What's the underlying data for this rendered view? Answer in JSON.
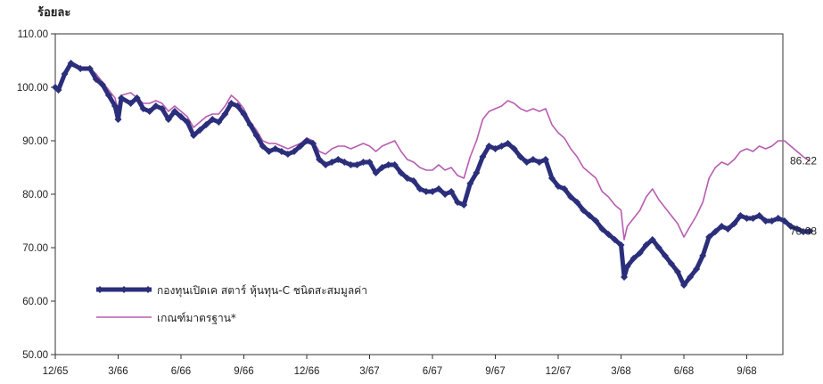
{
  "chart_data": {
    "type": "line",
    "title": "",
    "ylabel": "ร้อยละ",
    "xlabel": "",
    "ylim": [
      50,
      110
    ],
    "yticks": [
      "50.00",
      "60.00",
      "70.00",
      "80.00",
      "90.00",
      "100.00",
      "110.00"
    ],
    "categories": [
      "12/65",
      "3/66",
      "6/66",
      "9/66",
      "12/66",
      "3/67",
      "6/67",
      "9/67",
      "12/67",
      "3/68",
      "6/68",
      "9/68"
    ],
    "grid": false,
    "legend_position": "bottom-left",
    "series": [
      {
        "name": "กองทุนเปิดเค สตาร์ หุ้นทุน-C ชนิดสะสมมูลค่า",
        "color": "#2b2e7a",
        "style": "thick-with-diamond-markers",
        "end_label": "73.08",
        "points": [
          [
            0.0,
            100.0
          ],
          [
            0.05,
            99.5
          ],
          [
            0.15,
            102.5
          ],
          [
            0.25,
            104.5
          ],
          [
            0.4,
            103.5
          ],
          [
            0.55,
            103.5
          ],
          [
            0.65,
            101.5
          ],
          [
            0.75,
            100.5
          ],
          [
            0.85,
            98.5
          ],
          [
            0.95,
            96.5
          ],
          [
            1.0,
            94.0
          ],
          [
            1.05,
            98.0
          ],
          [
            1.2,
            97.0
          ],
          [
            1.3,
            98.0
          ],
          [
            1.4,
            96.0
          ],
          [
            1.5,
            95.5
          ],
          [
            1.6,
            96.5
          ],
          [
            1.7,
            96.0
          ],
          [
            1.8,
            94.0
          ],
          [
            1.9,
            95.5
          ],
          [
            2.0,
            94.5
          ],
          [
            2.1,
            93.5
          ],
          [
            2.2,
            91.0
          ],
          [
            2.3,
            92.0
          ],
          [
            2.4,
            93.0
          ],
          [
            2.5,
            94.0
          ],
          [
            2.6,
            93.5
          ],
          [
            2.7,
            95.0
          ],
          [
            2.8,
            97.0
          ],
          [
            2.9,
            96.5
          ],
          [
            3.0,
            95.0
          ],
          [
            3.1,
            93.0
          ],
          [
            3.2,
            91.0
          ],
          [
            3.3,
            89.0
          ],
          [
            3.4,
            88.0
          ],
          [
            3.5,
            88.5
          ],
          [
            3.6,
            88.0
          ],
          [
            3.7,
            87.5
          ],
          [
            3.8,
            88.0
          ],
          [
            3.9,
            89.0
          ],
          [
            4.0,
            90.0
          ],
          [
            4.1,
            89.5
          ],
          [
            4.2,
            86.5
          ],
          [
            4.3,
            85.5
          ],
          [
            4.4,
            86.0
          ],
          [
            4.5,
            86.5
          ],
          [
            4.6,
            86.0
          ],
          [
            4.7,
            85.5
          ],
          [
            4.8,
            85.5
          ],
          [
            4.9,
            86.0
          ],
          [
            5.0,
            86.0
          ],
          [
            5.1,
            84.0
          ],
          [
            5.2,
            85.0
          ],
          [
            5.3,
            85.5
          ],
          [
            5.4,
            85.5
          ],
          [
            5.5,
            84.0
          ],
          [
            5.6,
            83.0
          ],
          [
            5.7,
            82.5
          ],
          [
            5.8,
            81.0
          ],
          [
            5.9,
            80.5
          ],
          [
            6.0,
            80.5
          ],
          [
            6.1,
            81.0
          ],
          [
            6.2,
            80.0
          ],
          [
            6.3,
            80.5
          ],
          [
            6.4,
            78.5
          ],
          [
            6.5,
            78.0
          ],
          [
            6.6,
            82.0
          ],
          [
            6.7,
            84.0
          ],
          [
            6.8,
            87.0
          ],
          [
            6.9,
            89.0
          ],
          [
            7.0,
            88.5
          ],
          [
            7.1,
            89.0
          ],
          [
            7.2,
            89.5
          ],
          [
            7.3,
            88.5
          ],
          [
            7.4,
            87.0
          ],
          [
            7.5,
            86.0
          ],
          [
            7.6,
            86.5
          ],
          [
            7.7,
            86.0
          ],
          [
            7.8,
            86.5
          ],
          [
            7.9,
            83.0
          ],
          [
            8.0,
            81.5
          ],
          [
            8.1,
            81.0
          ],
          [
            8.2,
            79.5
          ],
          [
            8.3,
            78.5
          ],
          [
            8.4,
            77.0
          ],
          [
            8.5,
            76.0
          ],
          [
            8.6,
            75.0
          ],
          [
            8.7,
            73.5
          ],
          [
            8.8,
            72.5
          ],
          [
            8.9,
            71.5
          ],
          [
            9.0,
            70.5
          ],
          [
            9.05,
            64.5
          ],
          [
            9.1,
            66.5
          ],
          [
            9.2,
            68.0
          ],
          [
            9.3,
            69.0
          ],
          [
            9.4,
            70.5
          ],
          [
            9.5,
            71.5
          ],
          [
            9.6,
            70.0
          ],
          [
            9.7,
            68.5
          ],
          [
            9.8,
            67.0
          ],
          [
            9.9,
            65.5
          ],
          [
            10.0,
            63.0
          ],
          [
            10.1,
            64.5
          ],
          [
            10.2,
            66.0
          ],
          [
            10.3,
            68.5
          ],
          [
            10.4,
            72.0
          ],
          [
            10.5,
            73.0
          ],
          [
            10.6,
            74.0
          ],
          [
            10.7,
            73.5
          ],
          [
            10.8,
            74.5
          ],
          [
            10.9,
            76.0
          ],
          [
            11.0,
            75.5
          ],
          [
            11.1,
            75.5
          ],
          [
            11.2,
            76.0
          ],
          [
            11.3,
            75.0
          ],
          [
            11.4,
            75.0
          ],
          [
            11.5,
            75.5
          ],
          [
            11.6,
            75.0
          ],
          [
            11.7,
            74.0
          ],
          [
            11.8,
            73.5
          ],
          [
            11.9,
            73.0
          ],
          [
            12.0,
            73.08
          ]
        ]
      },
      {
        "name": "เกณฑ์มาตรฐาน*",
        "color": "#b85db0",
        "style": "thin-line",
        "end_label": "86.22",
        "points": [
          [
            0.0,
            100.0
          ],
          [
            0.05,
            99.5
          ],
          [
            0.15,
            102.5
          ],
          [
            0.25,
            104.0
          ],
          [
            0.4,
            103.5
          ],
          [
            0.55,
            103.5
          ],
          [
            0.65,
            102.5
          ],
          [
            0.75,
            101.0
          ],
          [
            0.85,
            99.5
          ],
          [
            0.95,
            98.0
          ],
          [
            1.0,
            95.5
          ],
          [
            1.05,
            98.5
          ],
          [
            1.2,
            99.0
          ],
          [
            1.3,
            98.0
          ],
          [
            1.4,
            97.0
          ],
          [
            1.5,
            97.0
          ],
          [
            1.6,
            97.5
          ],
          [
            1.7,
            97.0
          ],
          [
            1.8,
            95.5
          ],
          [
            1.9,
            96.5
          ],
          [
            2.0,
            95.5
          ],
          [
            2.1,
            94.5
          ],
          [
            2.2,
            92.5
          ],
          [
            2.3,
            93.5
          ],
          [
            2.4,
            94.5
          ],
          [
            2.5,
            95.0
          ],
          [
            2.6,
            95.0
          ],
          [
            2.7,
            96.5
          ],
          [
            2.8,
            98.5
          ],
          [
            2.9,
            97.5
          ],
          [
            3.0,
            96.0
          ],
          [
            3.1,
            93.5
          ],
          [
            3.2,
            92.0
          ],
          [
            3.3,
            90.0
          ],
          [
            3.4,
            89.5
          ],
          [
            3.5,
            89.5
          ],
          [
            3.6,
            89.0
          ],
          [
            3.7,
            88.5
          ],
          [
            3.8,
            89.0
          ],
          [
            3.9,
            89.5
          ],
          [
            4.0,
            90.5
          ],
          [
            4.1,
            90.0
          ],
          [
            4.2,
            88.0
          ],
          [
            4.3,
            87.5
          ],
          [
            4.4,
            88.5
          ],
          [
            4.5,
            89.0
          ],
          [
            4.6,
            89.0
          ],
          [
            4.7,
            88.5
          ],
          [
            4.8,
            89.0
          ],
          [
            4.9,
            89.5
          ],
          [
            5.0,
            89.0
          ],
          [
            5.1,
            88.0
          ],
          [
            5.2,
            89.0
          ],
          [
            5.3,
            89.5
          ],
          [
            5.4,
            90.0
          ],
          [
            5.5,
            88.0
          ],
          [
            5.6,
            86.5
          ],
          [
            5.7,
            86.0
          ],
          [
            5.8,
            85.0
          ],
          [
            5.9,
            84.5
          ],
          [
            6.0,
            84.5
          ],
          [
            6.1,
            85.5
          ],
          [
            6.2,
            84.5
          ],
          [
            6.3,
            85.0
          ],
          [
            6.4,
            83.5
          ],
          [
            6.5,
            83.0
          ],
          [
            6.6,
            87.0
          ],
          [
            6.7,
            90.0
          ],
          [
            6.8,
            94.0
          ],
          [
            6.9,
            95.5
          ],
          [
            7.0,
            96.0
          ],
          [
            7.1,
            96.5
          ],
          [
            7.2,
            97.5
          ],
          [
            7.3,
            97.0
          ],
          [
            7.4,
            96.0
          ],
          [
            7.5,
            95.5
          ],
          [
            7.6,
            96.0
          ],
          [
            7.7,
            95.5
          ],
          [
            7.8,
            96.0
          ],
          [
            7.9,
            93.0
          ],
          [
            8.0,
            91.5
          ],
          [
            8.1,
            90.5
          ],
          [
            8.2,
            88.5
          ],
          [
            8.3,
            87.0
          ],
          [
            8.4,
            85.0
          ],
          [
            8.5,
            84.0
          ],
          [
            8.6,
            83.0
          ],
          [
            8.7,
            80.5
          ],
          [
            8.8,
            79.5
          ],
          [
            8.9,
            78.0
          ],
          [
            9.0,
            77.0
          ],
          [
            9.05,
            71.5
          ],
          [
            9.1,
            74.0
          ],
          [
            9.2,
            75.5
          ],
          [
            9.3,
            77.0
          ],
          [
            9.4,
            79.5
          ],
          [
            9.5,
            81.0
          ],
          [
            9.6,
            79.0
          ],
          [
            9.7,
            77.5
          ],
          [
            9.8,
            76.0
          ],
          [
            9.9,
            74.5
          ],
          [
            10.0,
            72.0
          ],
          [
            10.1,
            74.0
          ],
          [
            10.2,
            76.0
          ],
          [
            10.3,
            78.5
          ],
          [
            10.4,
            83.0
          ],
          [
            10.5,
            85.0
          ],
          [
            10.6,
            86.0
          ],
          [
            10.7,
            85.5
          ],
          [
            10.8,
            86.5
          ],
          [
            10.9,
            88.0
          ],
          [
            11.0,
            88.5
          ],
          [
            11.1,
            88.0
          ],
          [
            11.2,
            89.0
          ],
          [
            11.3,
            88.5
          ],
          [
            11.4,
            89.0
          ],
          [
            11.5,
            90.0
          ],
          [
            11.6,
            90.0
          ],
          [
            11.7,
            89.0
          ],
          [
            11.8,
            88.0
          ],
          [
            11.9,
            87.0
          ],
          [
            12.0,
            86.22
          ]
        ]
      }
    ]
  }
}
